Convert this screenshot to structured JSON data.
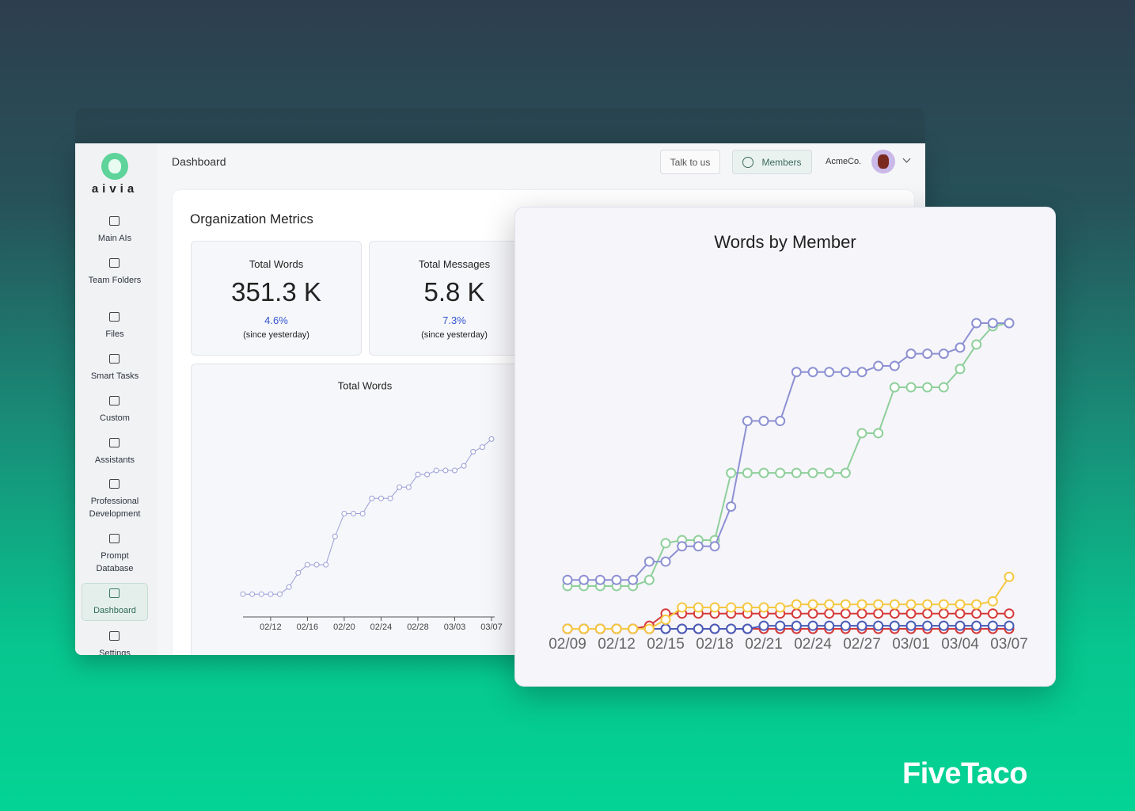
{
  "brand": "FiveTaco",
  "app": {
    "logo": "aivia",
    "nav": [
      {
        "label": "Main AIs"
      },
      {
        "label": "Team Folders"
      },
      {
        "label": "Files"
      },
      {
        "label": "Smart Tasks"
      },
      {
        "label": "Custom"
      },
      {
        "label": "Assistants"
      },
      {
        "label": "Professional Development"
      },
      {
        "label": "Prompt Database"
      },
      {
        "label": "Dashboard",
        "active": true
      },
      {
        "label": "Settings"
      }
    ],
    "header": {
      "title": "Dashboard",
      "buttons": [
        "Talk to us",
        "Members"
      ],
      "org": "AcmeCo."
    },
    "section_title": "Organization Metrics",
    "metrics": [
      {
        "label": "Total Words",
        "value": "351.3 K",
        "change": "4.6%",
        "note": "(since yesterday)"
      },
      {
        "label": "Total Messages",
        "value": "5.8 K",
        "change": "7.3%",
        "note": "(since yesterday)"
      }
    ]
  },
  "chart_data": [
    {
      "type": "line",
      "title": "Total Words",
      "categories": [
        null,
        null,
        null,
        "02/12",
        null,
        null,
        null,
        "02/16",
        null,
        null,
        null,
        "02/20",
        null,
        null,
        null,
        "02/24",
        null,
        null,
        null,
        "02/28",
        null,
        null,
        null,
        "03/03",
        null,
        null,
        null,
        "03/07"
      ],
      "ylim": [
        0,
        400
      ],
      "series": [
        {
          "color": "#9a9ed6",
          "values": [
            45,
            45,
            45,
            45,
            45,
            59,
            87,
            103,
            103,
            103,
            159,
            204,
            204,
            204,
            234,
            234,
            234,
            256,
            256,
            281,
            281,
            289,
            289,
            289,
            298,
            326,
            335,
            351
          ]
        }
      ]
    },
    {
      "type": "line",
      "title": "Words by Member",
      "categories": [
        "02/09",
        null,
        null,
        "02/12",
        null,
        null,
        "02/15",
        null,
        null,
        "02/18",
        null,
        null,
        "02/21",
        null,
        null,
        "02/24",
        null,
        null,
        "02/27",
        null,
        null,
        "03/01",
        null,
        null,
        "03/04",
        null,
        null,
        "03/07"
      ],
      "ylim": [
        0,
        100
      ],
      "series": [
        {
          "color": "#d63a3a",
          "values": [
            0,
            0,
            0,
            0,
            0,
            0,
            0,
            0,
            0,
            0,
            0,
            0,
            0,
            0,
            0,
            0,
            0,
            0,
            0,
            0,
            0,
            0,
            0,
            0,
            0,
            0,
            0,
            0
          ]
        },
        {
          "color": "#4a5bb8",
          "values": [
            0,
            0,
            0,
            0,
            0,
            0,
            0,
            0,
            0,
            0,
            0,
            0,
            1,
            1,
            1,
            1,
            1,
            1,
            1,
            1,
            1,
            1,
            1,
            1,
            1,
            1,
            1,
            1
          ]
        },
        {
          "color": "#d63a3a",
          "values": [
            0,
            0,
            0,
            0,
            0,
            1,
            5,
            5,
            5,
            5,
            5,
            5,
            5,
            5,
            5,
            5,
            5,
            5,
            5,
            5,
            5,
            5,
            5,
            5,
            5,
            5,
            5,
            5
          ]
        },
        {
          "color": "#f5c842",
          "values": [
            0,
            0,
            0,
            0,
            0,
            0,
            3,
            7,
            7,
            7,
            7,
            7,
            7,
            7,
            8,
            8,
            8,
            8,
            8,
            8,
            8,
            8,
            8,
            8,
            8,
            8,
            9,
            17
          ]
        },
        {
          "color": "#8fcf9b",
          "values": [
            14,
            14,
            14,
            14,
            14,
            16,
            28,
            29,
            29,
            29,
            51,
            51,
            51,
            51,
            51,
            51,
            51,
            51,
            64,
            64,
            79,
            79,
            79,
            79,
            85,
            93,
            99,
            100
          ]
        },
        {
          "color": "#8d90d2",
          "values": [
            16,
            16,
            16,
            16,
            16,
            22,
            22,
            27,
            27,
            27,
            40,
            68,
            68,
            68,
            84,
            84,
            84,
            84,
            84,
            86,
            86,
            90,
            90,
            90,
            92,
            100,
            100,
            100
          ]
        }
      ]
    }
  ]
}
